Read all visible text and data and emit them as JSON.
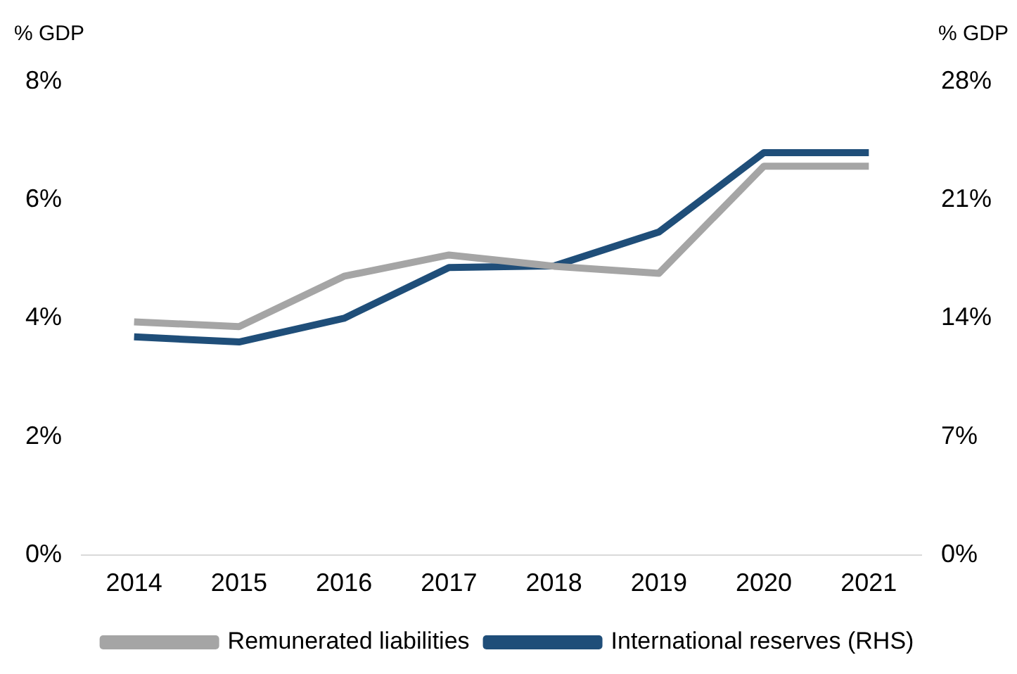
{
  "chart_data": {
    "type": "line",
    "ylabel": "% GDP",
    "y2label": "% GDP",
    "categories": [
      "2014",
      "2015",
      "2016",
      "2017",
      "2018",
      "2019",
      "2020",
      "2021"
    ],
    "series": [
      {
        "name": "Remunerated liabilities",
        "color": "#a5a5a5",
        "values": [
          3.94,
          3.86,
          4.71,
          5.07,
          4.88,
          4.76,
          6.57,
          6.57
        ]
      },
      {
        "name": "International reserves (RHS)",
        "color": "#1f4e79",
        "axis": "y2",
        "values": [
          12.9,
          12.6,
          14.0,
          17.0,
          17.1,
          19.1,
          23.8,
          23.8
        ]
      }
    ],
    "ylim": [
      0,
      8
    ],
    "yticks": [
      {
        "value": 0,
        "label": "0%"
      },
      {
        "value": 2,
        "label": "2%"
      },
      {
        "value": 4,
        "label": "4%"
      },
      {
        "value": 6,
        "label": "6%"
      },
      {
        "value": 8,
        "label": "8%"
      }
    ],
    "y2lim": [
      0,
      28
    ],
    "y2ticks": [
      {
        "value": 0,
        "label": "0%"
      },
      {
        "value": 7,
        "label": "7%"
      },
      {
        "value": 14,
        "label": "14%"
      },
      {
        "value": 21,
        "label": "21%"
      },
      {
        "value": 28,
        "label": "28%"
      }
    ],
    "grid": false,
    "legend": "bottom",
    "marker": "none",
    "line_style": "solid"
  }
}
